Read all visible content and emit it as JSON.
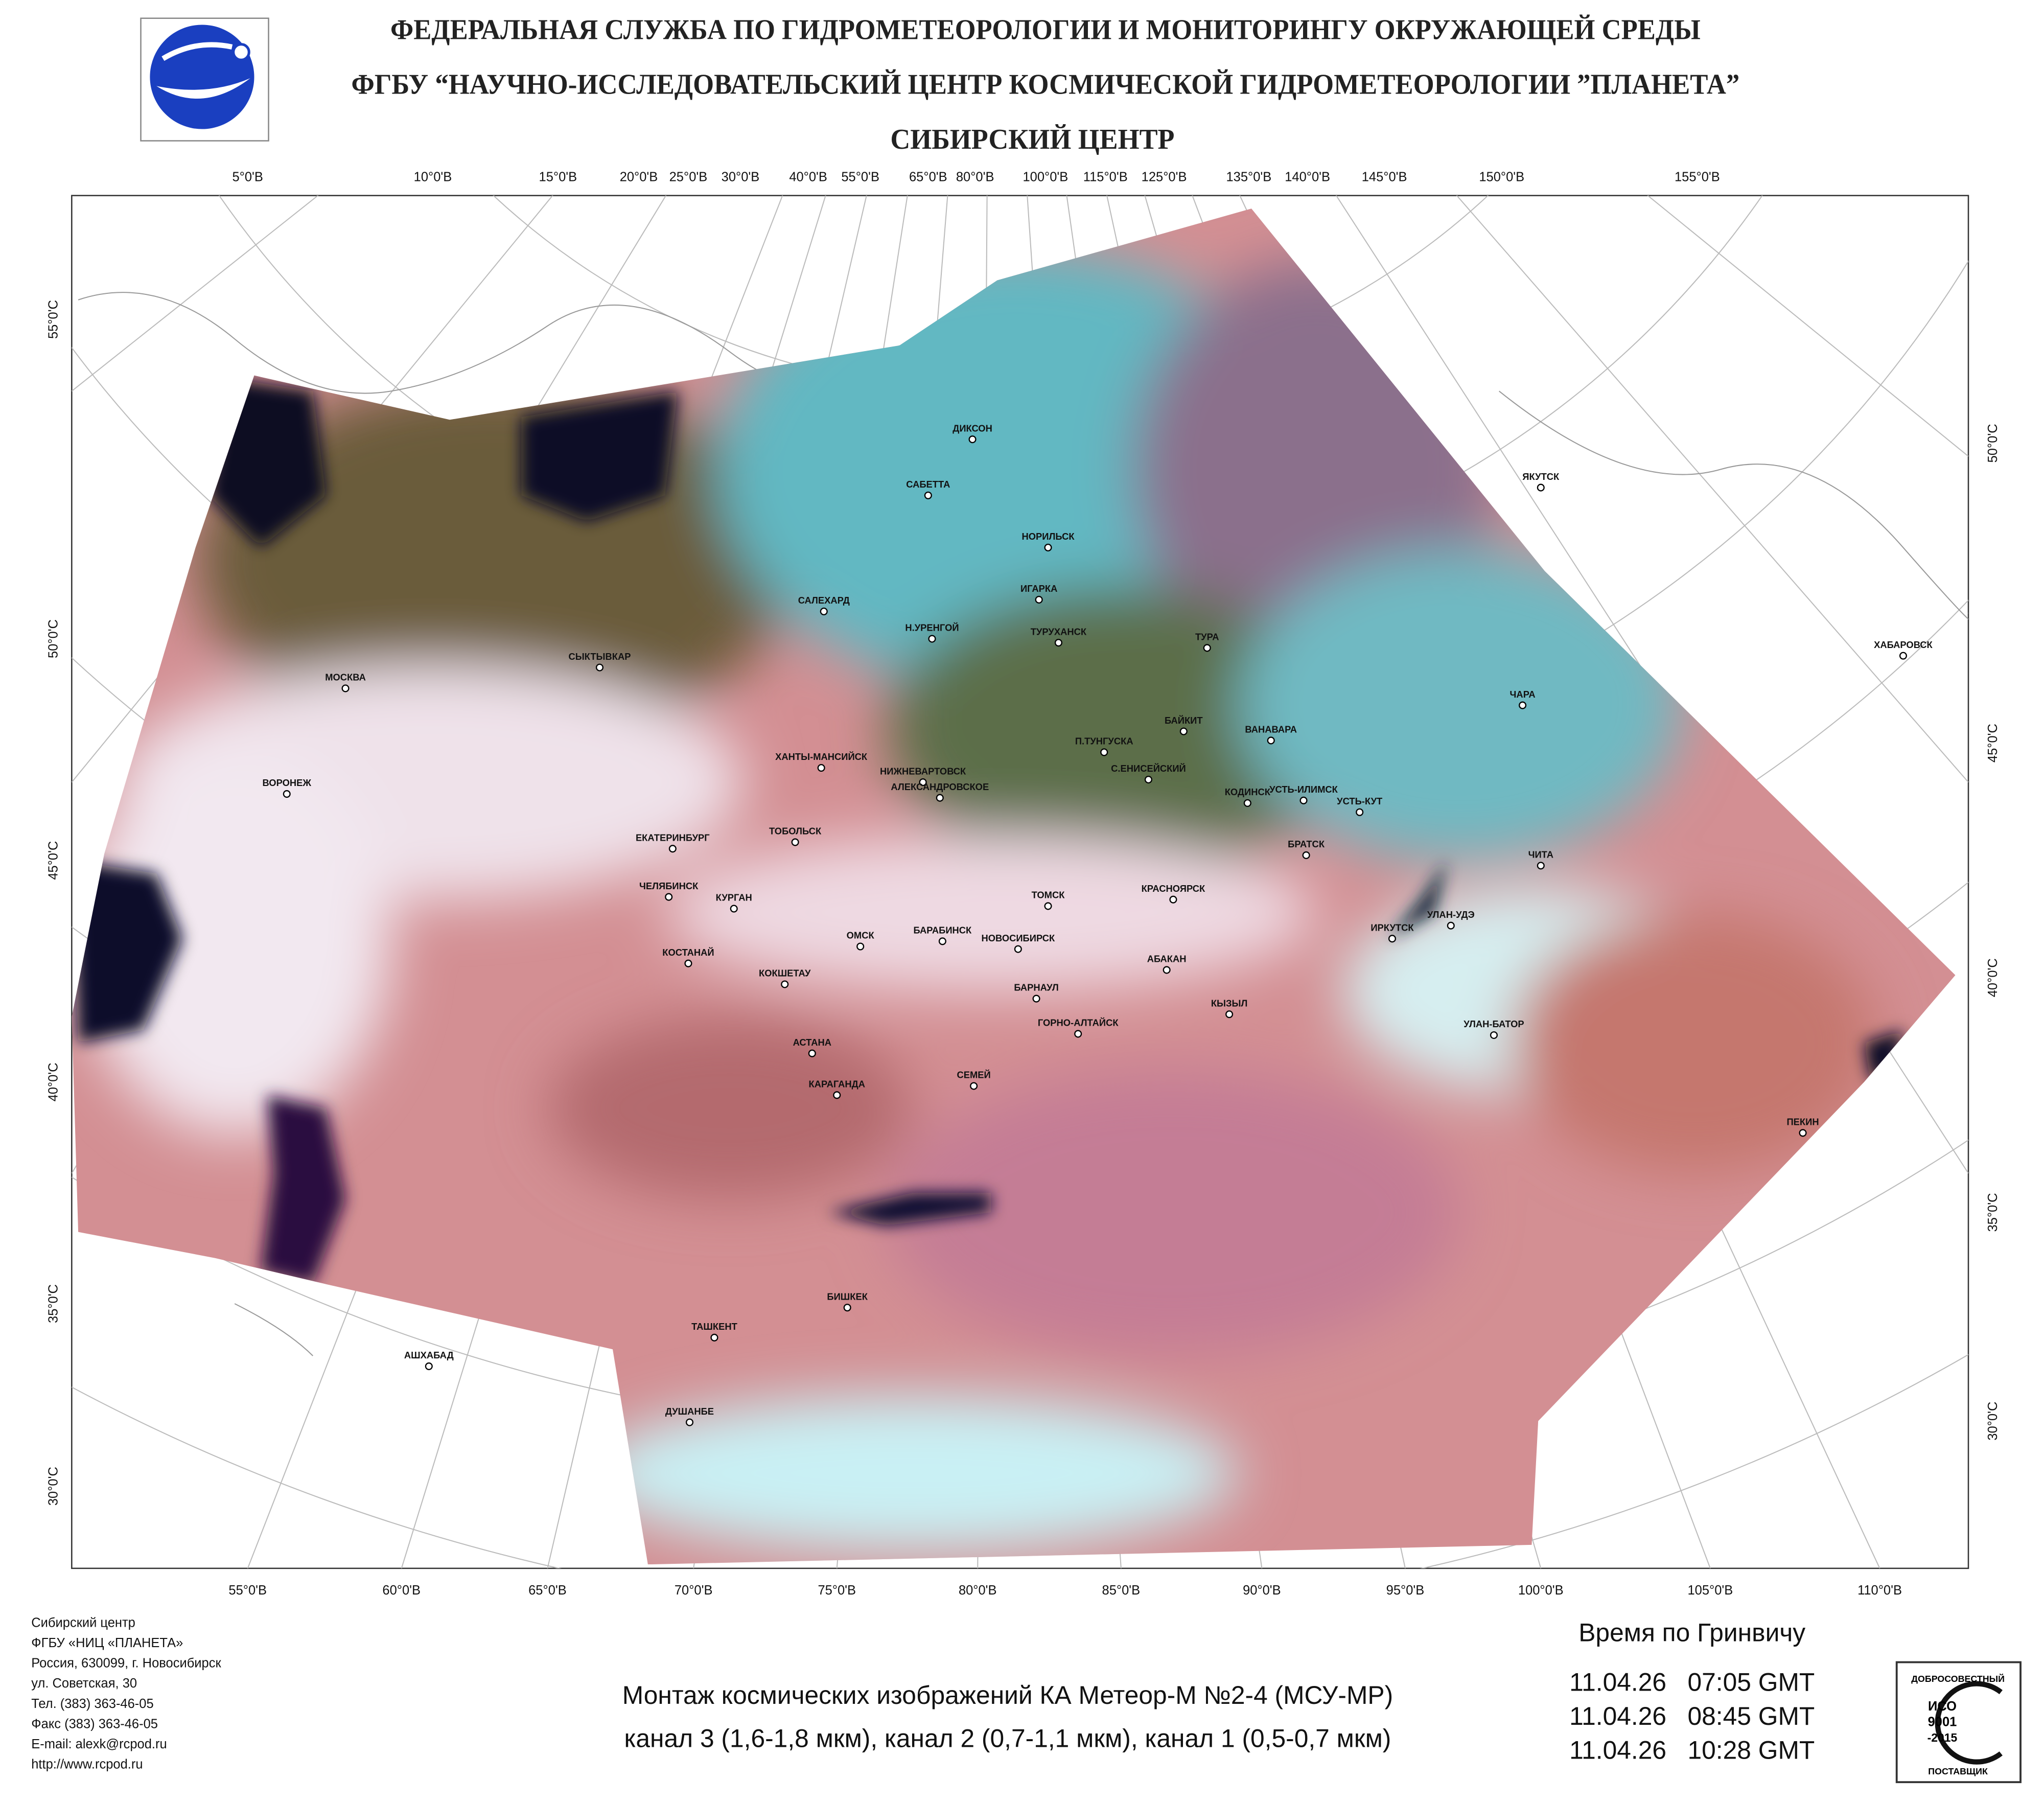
{
  "header": {
    "title": "ФЕДЕРАЛЬНАЯ СЛУЖБА ПО ГИДРОМЕТЕОРОЛОГИИ И МОНИТОРИНГУ ОКРУЖАЮЩЕЙ СРЕДЫ",
    "subtitle": "ФГБУ “НАУЧНО-ИССЛЕДОВАТЕЛЬСКИЙ ЦЕНТР КОСМИЧЕСКОЙ ГИДРОМЕТЕОРОЛОГИИ ”ПЛАНЕТА”",
    "center": "СИБИРСКИЙ  ЦЕНТР"
  },
  "map": {
    "top_labels": [
      "5°0'В",
      "10°0'В",
      "15°0'В",
      "20°0'В",
      "25°0'В",
      "30°0'В",
      "40°0'В",
      "55°0'В",
      "65°0'В",
      "80°0'В",
      "100°0'В",
      "115°0'В",
      "125°0'В",
      "135°0'В",
      "140°0'В",
      "145°0'В",
      "150°0'В",
      "155°0'В"
    ],
    "bottom_labels": [
      "55°0'В",
      "60°0'В",
      "65°0'В",
      "70°0'В",
      "75°0'В",
      "80°0'В",
      "85°0'В",
      "90°0'В",
      "95°0'В",
      "100°0'В",
      "105°0'В",
      "110°0'В"
    ],
    "left_labels": [
      "55°0'С",
      "50°0'С",
      "45°0'С",
      "40°0'С",
      "35°0'С",
      "30°0'С"
    ],
    "right_labels": [
      "50°0'С",
      "45°0'С",
      "40°0'С",
      "35°0'С",
      "30°0'С"
    ],
    "cities": [
      "ДИКСОН",
      "САБЕТТА",
      "НОРИЛЬСК",
      "ИГАРКА",
      "ТУРУХАНСК",
      "САЛЕХАРД",
      "Н.УРЕНГОЙ",
      "ТУРА",
      "ЯКУТСК",
      "ХАБАРОВСК",
      "СЫКТЫВКАР",
      "МОСКВА",
      "ЧАРА",
      "БАЙКИТ",
      "ВАНАВАРА",
      "П.ТУНГУСКА",
      "ХАНТЫ-МАНСИЙСК",
      "НИЖНЕВАРТОВСК",
      "С.ЕНИСЕЙСКИЙ",
      "УСТЬ-ИЛИМСК",
      "КОДИНСК",
      "АЛЕКСАНДРОВСКОЕ",
      "УСТЬ-КУТ",
      "ВОРОНЕЖ",
      "ТОБОЛЬСК",
      "ЕКАТЕРИНБУРГ",
      "БРАТСК",
      "ЧИТА",
      "ЧЕЛЯБИНСК",
      "ТОМСК",
      "КРАСНОЯРСК",
      "КУРГАН",
      "ОМСК",
      "НОВОСИБИРСК",
      "БАРАБИНСК",
      "ИРКУТСК",
      "УЛАН-УДЭ",
      "БАРНАУЛ",
      "КОСТАНАЙ",
      "КОКШЕТАУ",
      "АБАКАН",
      "КЫЗЫЛ",
      "ГОРНО-АЛТАЙСК",
      "УЛАН-БАТОР",
      "АСТАНА",
      "СЕМЕЙ",
      "КАРАГАНДА",
      "ПЕКИН",
      "БИШКЕК",
      "ТАШКЕНТ",
      "АШХАБАД",
      "ДУШАНБЕ"
    ]
  },
  "footer": {
    "address": [
      "Сибирский центр",
      "ФГБУ «НИЦ «ПЛАНЕТА»",
      "Россия, 630099, г. Новосибирск",
      "ул. Советская, 30",
      "Тел. (383) 363-46-05",
      "Факс (383) 363-46-05",
      "E-mail: alexk@rcpod.ru",
      "http://www.rcpod.ru"
    ],
    "caption": [
      "Монтаж космических изображений КА Метеор-М №2-4 (МСУ-МР)",
      "канал 3 (1,6-1,8 мкм), канал 2 (0,7-1,1 мкм), канал 1 (0,5-0,7 мкм)"
    ],
    "time_heading": "Время по Гринвичу",
    "times": [
      "11.04.26   07:05 GMT",
      "11.04.26   08:45 GMT",
      "11.04.26   10:28 GMT"
    ]
  },
  "badge": {
    "top": "ДОБРОСОВЕСТНЫЙ",
    "iso": "ИСО",
    "number": "9001",
    "year": "-2015",
    "bottom": "ПОСТАВЩИК"
  }
}
